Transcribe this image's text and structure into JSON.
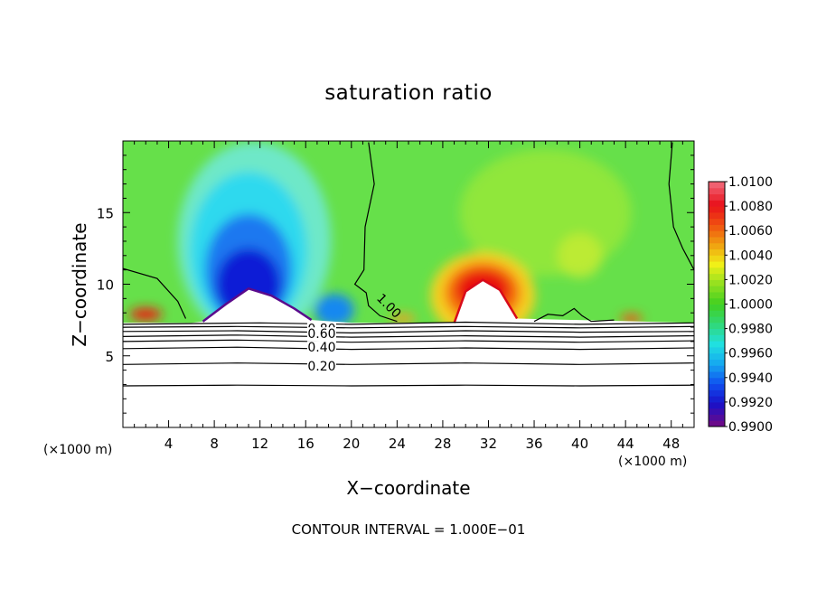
{
  "chart_data": {
    "type": "heatmap",
    "title": "saturation ratio",
    "xlabel": "X−coordinate",
    "ylabel": "Z−coordinate",
    "x_unit_left": "(×1000 m)",
    "x_unit_right": "(×1000 m)",
    "footer": "CONTOUR INTERVAL = 1.000E−01",
    "xlim": [
      0,
      50
    ],
    "ylim": [
      0,
      20
    ],
    "x_ticks": [
      4,
      8,
      12,
      16,
      20,
      24,
      28,
      32,
      36,
      40,
      44,
      48
    ],
    "y_ticks": [
      5,
      10,
      15
    ],
    "colorbar": {
      "levels": [
        0.99,
        0.992,
        0.994,
        0.996,
        0.998,
        1.0,
        1.002,
        1.004,
        1.006,
        1.008,
        1.01
      ],
      "labels": [
        "0.9900",
        "0.9920",
        "0.9940",
        "0.9960",
        "0.9980",
        "1.0000",
        "1.0020",
        "1.0040",
        "1.0060",
        "1.0080",
        "1.0100"
      ]
    },
    "contour_labels": [
      "1.00",
      "0.80",
      "0.60",
      "0.40",
      "0.20"
    ],
    "contour_levels_below_cloud_base": [
      0.2,
      0.4,
      0.6,
      0.8
    ],
    "features": [
      {
        "kind": "dry_minimum",
        "x_center": 11,
        "z_top": 9.7,
        "min_value": 0.99
      },
      {
        "kind": "supersaturated_maximum",
        "x_center": 31.5,
        "z_top": 10.6,
        "max_value": 1.01
      },
      {
        "kind": "supersaturated_maximum",
        "x_center": 2,
        "z_top": 8.1,
        "max_value": 1.01
      },
      {
        "kind": "supersaturated_maximum",
        "x_center": 44.5,
        "z_top": 7.8,
        "max_value": 1.006
      }
    ]
  }
}
